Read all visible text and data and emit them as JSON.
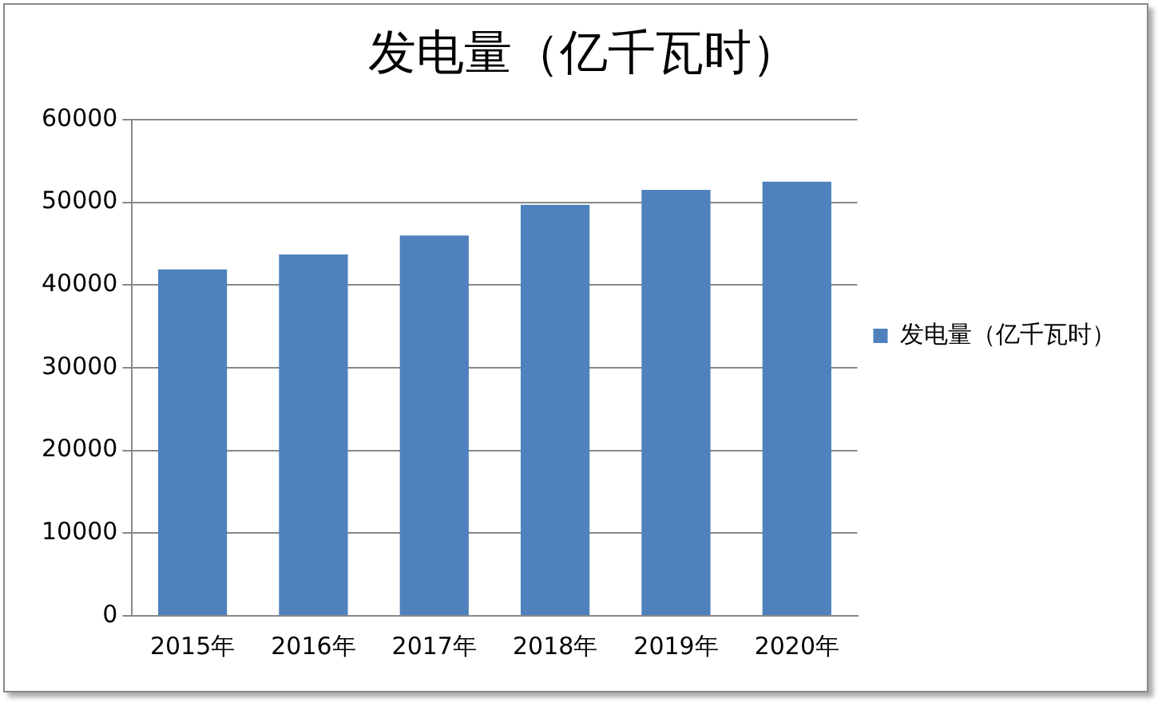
{
  "chart_data": {
    "type": "bar",
    "title": "发电量（亿千瓦时）",
    "categories": [
      "2015年",
      "2016年",
      "2017年",
      "2018年",
      "2019年",
      "2020年"
    ],
    "series": [
      {
        "name": "发电量（亿千瓦时）",
        "color": "#4f81bd",
        "values": [
          41900,
          43700,
          46000,
          49700,
          51500,
          52500
        ]
      }
    ],
    "ylim": [
      0,
      60000
    ],
    "yticks": [
      0,
      10000,
      20000,
      30000,
      40000,
      50000,
      60000
    ],
    "grid": "y",
    "legend": "right"
  }
}
